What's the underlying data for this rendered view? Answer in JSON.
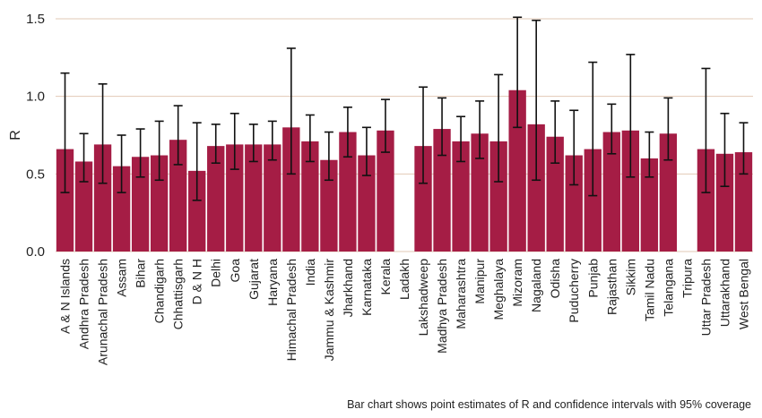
{
  "chart_data": {
    "type": "bar",
    "ylabel": "R",
    "xlabel": "",
    "ylim": [
      0,
      1.5
    ],
    "yticks": [
      "0.0",
      "0.5",
      "1.0",
      "1.5"
    ],
    "grid": "horizontal",
    "bar_color": "#a51d45",
    "grid_color": "#e2c9b6",
    "errorbar_color": "#111111",
    "caption": "Bar chart shows point estimates of R and confidence intervals with 95% coverage",
    "categories": [
      "A & N Islands",
      "Andhra Pradesh",
      "Arunachal Pradesh",
      "Assam",
      "Bihar",
      "Chandigarh",
      "Chhattisgarh",
      "D & N H",
      "Delhi",
      "Goa",
      "Gujarat",
      "Haryana",
      "Himachal Pradesh",
      "India",
      "Jammu & Kashmir",
      "Jharkhand",
      "Karnataka",
      "Kerala",
      "Ladakh",
      "Lakshadweep",
      "Madhya Pradesh",
      "Maharashtra",
      "Manipur",
      "Meghalaya",
      "Mizoram",
      "Nagaland",
      "Odisha",
      "Puducherry",
      "Punjab",
      "Rajasthan",
      "Sikkim",
      "Tamil Nadu",
      "Telangana",
      "Tripura",
      "Uttar Pradesh",
      "Uttarakhand",
      "West Bengal"
    ],
    "values": [
      0.66,
      0.58,
      0.69,
      0.55,
      0.61,
      0.62,
      0.72,
      0.52,
      0.68,
      0.69,
      0.69,
      0.69,
      0.8,
      0.71,
      0.59,
      0.77,
      0.62,
      0.78,
      null,
      0.68,
      0.79,
      0.71,
      0.76,
      0.71,
      1.04,
      0.82,
      0.74,
      0.62,
      0.66,
      0.77,
      0.78,
      0.6,
      0.76,
      null,
      0.66,
      0.63,
      0.64
    ],
    "ci_lower": [
      0.38,
      0.45,
      0.44,
      0.38,
      0.48,
      0.46,
      0.56,
      0.33,
      0.57,
      0.53,
      0.58,
      0.59,
      0.5,
      0.58,
      0.46,
      0.61,
      0.49,
      0.64,
      null,
      0.44,
      0.62,
      0.58,
      0.6,
      0.45,
      0.8,
      0.46,
      0.57,
      0.43,
      0.36,
      0.63,
      0.48,
      0.48,
      0.59,
      null,
      0.38,
      0.42,
      0.5
    ],
    "ci_upper": [
      1.15,
      0.76,
      1.08,
      0.75,
      0.79,
      0.84,
      0.94,
      0.83,
      0.82,
      0.89,
      0.82,
      0.84,
      1.31,
      0.88,
      0.77,
      0.93,
      0.8,
      0.98,
      null,
      1.06,
      0.99,
      0.87,
      0.97,
      1.14,
      1.51,
      1.49,
      0.97,
      0.91,
      1.22,
      0.95,
      1.27,
      0.77,
      0.99,
      null,
      1.18,
      0.89,
      0.83
    ]
  }
}
